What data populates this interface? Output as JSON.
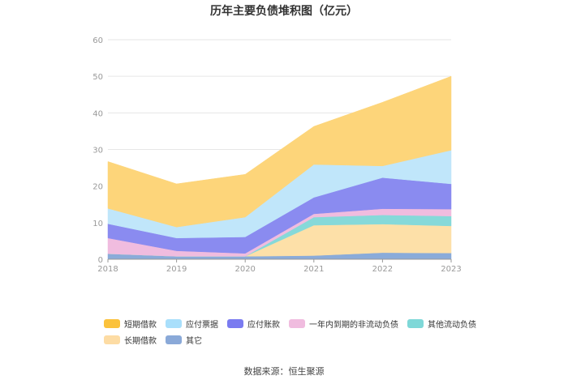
{
  "chart_data": {
    "type": "area",
    "stacked": true,
    "title": "历年主要负债堆积图（亿元）",
    "x": [
      "2018",
      "2019",
      "2020",
      "2021",
      "2022",
      "2023"
    ],
    "ylim": [
      0,
      60
    ],
    "yticks": [
      0,
      10,
      20,
      30,
      40,
      50,
      60
    ],
    "grid": true,
    "legend_position": "bottom",
    "series": [
      {
        "name": "其它",
        "color": "#8aabd9",
        "values": [
          1.5,
          0.8,
          0.8,
          1.0,
          1.8,
          1.7
        ]
      },
      {
        "name": "长期借款",
        "color": "#fde0a8",
        "values": [
          0.0,
          0.0,
          0.0,
          8.3,
          7.8,
          7.4
        ]
      },
      {
        "name": "其他流动负债",
        "color": "#86d9d9",
        "values": [
          0.0,
          0.0,
          0.0,
          2.2,
          2.5,
          2.7
        ]
      },
      {
        "name": "一年内到期的非流动负债",
        "color": "#f0bcdf",
        "values": [
          4.3,
          1.5,
          0.8,
          0.9,
          1.7,
          1.9
        ]
      },
      {
        "name": "应付账款",
        "color": "#8a8bf0",
        "values": [
          3.9,
          3.5,
          4.5,
          4.5,
          8.5,
          6.9
        ]
      },
      {
        "name": "应付票据",
        "color": "#c0e6fa",
        "values": [
          4.2,
          3.0,
          5.4,
          9.0,
          3.2,
          9.2
        ]
      },
      {
        "name": "短期借款",
        "color": "#fdd57a",
        "values": [
          12.8,
          11.8,
          11.7,
          10.4,
          17.4,
          20.2
        ]
      }
    ],
    "legend": [
      {
        "name": "短期借款",
        "color": "#fbc23c"
      },
      {
        "name": "应付票据",
        "color": "#a9dffb"
      },
      {
        "name": "应付账款",
        "color": "#7a7bf0"
      },
      {
        "name": "一年内到期的非流动负债",
        "color": "#f0bcdf"
      },
      {
        "name": "其他流动负债",
        "color": "#7fd8d8"
      },
      {
        "name": "长期借款",
        "color": "#fddca4"
      },
      {
        "name": "其它",
        "color": "#8aa9d8"
      }
    ]
  },
  "source": "数据来源：恒生聚源"
}
